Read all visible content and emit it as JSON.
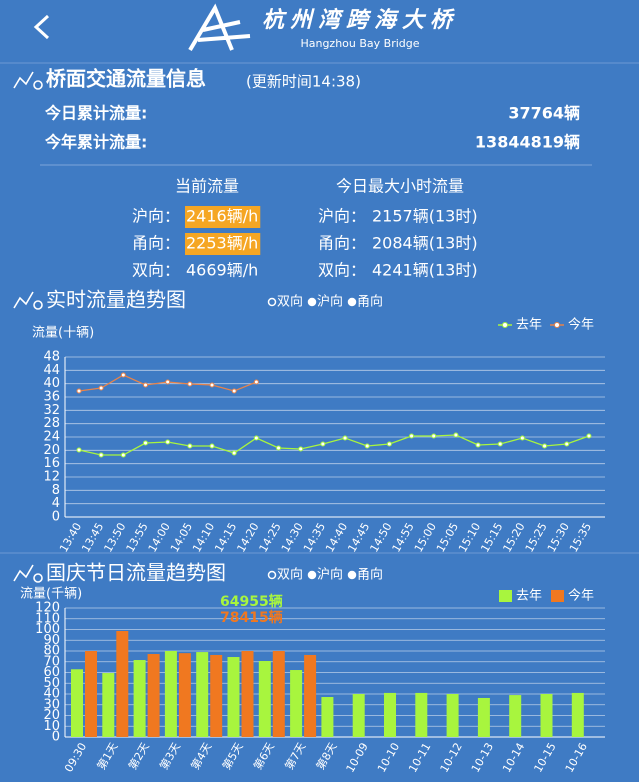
{
  "header": {
    "logo_cn": "杭州湾跨海大桥",
    "logo_en": "Hangzhou Bay Bridge"
  },
  "traffic": {
    "title": "桥面交通流量信息",
    "update": "(更新时间14:38)",
    "totals": [
      {
        "label": "今日累计流量:",
        "value": "37764辆"
      },
      {
        "label": "今年累计流量:",
        "value": "13844819辆"
      }
    ],
    "current": {
      "heading": "当前流量",
      "rows": [
        {
          "dir": "沪向：",
          "value": "2416辆/h",
          "highlight": true
        },
        {
          "dir": "甬向：",
          "value": "2253辆/h",
          "highlight": true
        },
        {
          "dir": "双向：",
          "value": "4669辆/h",
          "highlight": false
        }
      ]
    },
    "peak": {
      "heading": "今日最大小时流量",
      "rows": [
        {
          "dir": "沪向：",
          "value": "2157辆(13时)",
          "highlight": false
        },
        {
          "dir": "甬向：",
          "value": "2084辆(13时)",
          "highlight": false
        },
        {
          "dir": "双向：",
          "value": "4241辆(13时)",
          "highlight": false
        }
      ]
    }
  },
  "chart_data": [
    {
      "type": "line",
      "title": "实时流量趋势图",
      "options": [
        {
          "label": "双向",
          "selected": true
        },
        {
          "label": "沪向",
          "selected": false
        },
        {
          "label": "甬向",
          "selected": false
        }
      ],
      "y_label": "流量(十辆)",
      "categories": [
        "13:40",
        "13:45",
        "13:50",
        "13:55",
        "14:00",
        "14:05",
        "14:10",
        "14:15",
        "14:20",
        "14:25",
        "14:30",
        "14:35",
        "14:40",
        "14:45",
        "14:50",
        "14:55",
        "15:00",
        "15:05",
        "15:10",
        "15:15",
        "15:20",
        "15:25",
        "15:30",
        "15:35"
      ],
      "series": [
        {
          "name": "去年",
          "color": "#a8f53e",
          "values": [
            20.1,
            18.6,
            18.6,
            22.2,
            22.5,
            21.3,
            21.3,
            19.2,
            23.7,
            20.7,
            20.4,
            21.9,
            23.7,
            21.3,
            21.9,
            24.3,
            24.3,
            24.6,
            21.6,
            21.9,
            23.7,
            21.3,
            21.9,
            24.3
          ]
        },
        {
          "name": "今年",
          "color": "#e8834a",
          "values": [
            37.8,
            38.7,
            42.6,
            39.6,
            40.5,
            39.9,
            39.6,
            37.8,
            40.5,
            null,
            null,
            null,
            null,
            null,
            null,
            null,
            null,
            null,
            null,
            null,
            null,
            null,
            null,
            null
          ]
        }
      ],
      "ylim": [
        0,
        48
      ],
      "yticks": [
        0,
        4,
        8,
        12,
        16,
        20,
        24,
        28,
        32,
        36,
        40,
        44,
        48
      ],
      "grid": true,
      "legend": "top-right"
    },
    {
      "type": "bar",
      "title": "国庆节日流量趋势图",
      "options": [
        {
          "label": "双向",
          "selected": true
        },
        {
          "label": "沪向",
          "selected": false
        },
        {
          "label": "甬向",
          "selected": false
        }
      ],
      "y_label": "流量(千辆)",
      "categories": [
        "09:30",
        "第1天",
        "第2天",
        "第3天",
        "第4天",
        "第5天",
        "第6天",
        "第7天",
        "第8天",
        "10-09",
        "10-10",
        "10-11",
        "10-12",
        "10-13",
        "10-14",
        "10-15",
        "10-16"
      ],
      "series": [
        {
          "name": "去年",
          "color": "#a8f53e",
          "values": [
            63,
            59.5,
            71.6,
            80,
            79,
            74.4,
            70.7,
            62.3,
            37.2,
            40,
            41,
            41,
            40,
            36.3,
            39,
            40,
            41
          ]
        },
        {
          "name": "今年",
          "color": "#f07820",
          "values": [
            80,
            98.6,
            77.2,
            78,
            76.3,
            80,
            80,
            76.3,
            null,
            null,
            null,
            null,
            null,
            null,
            null,
            null,
            null
          ]
        }
      ],
      "annotations": [
        {
          "text": "64955辆",
          "color": "#a8f53e"
        },
        {
          "text": "78415辆",
          "color": "#f07820"
        }
      ],
      "ylim": [
        0,
        120
      ],
      "yticks": [
        0,
        10,
        20,
        30,
        40,
        50,
        60,
        70,
        80,
        90,
        100,
        110,
        120
      ],
      "grid": true,
      "legend": "top-right"
    }
  ]
}
